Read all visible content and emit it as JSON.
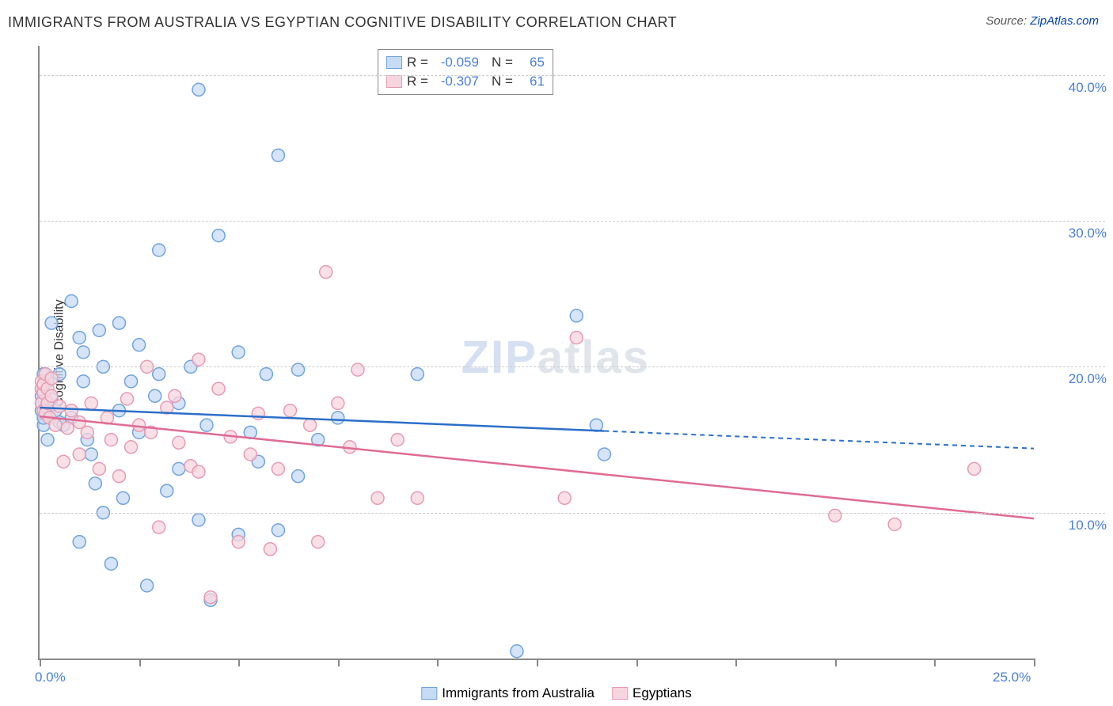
{
  "title": "IMMIGRANTS FROM AUSTRALIA VS EGYPTIAN COGNITIVE DISABILITY CORRELATION CHART",
  "source_prefix": "Source: ",
  "source_link": "ZipAtlas.com",
  "ylabel": "Cognitive Disability",
  "watermark": {
    "part1": "ZIP",
    "part2": "atlas"
  },
  "chart": {
    "type": "scatter",
    "background_color": "#ffffff",
    "grid_color": "#cccccc",
    "axis_color": "#888888",
    "tick_label_color": "#4a7fd6",
    "tick_label_fontsize": 17,
    "xlim": [
      0,
      25
    ],
    "ylim": [
      0,
      42
    ],
    "y_ticks": [
      10,
      20,
      30,
      40
    ],
    "y_tick_labels": [
      "10.0%",
      "20.0%",
      "30.0%",
      "40.0%"
    ],
    "x_ticks": [
      0,
      2.5,
      5,
      7.5,
      10,
      12.5,
      15,
      17.5,
      20,
      22.5,
      25
    ],
    "x_tick_labels_shown": {
      "0": "0.0%",
      "25": "25.0%"
    },
    "marker_radius": 8,
    "marker_stroke_width": 1.5,
    "line_width": 2.5,
    "series": [
      {
        "name": "Immigrants from Australia",
        "fill": "#c7dbf5",
        "stroke": "#6fa3e0",
        "line_color": "#2b6fc9",
        "R": "-0.059",
        "N": "65",
        "regression": {
          "x1": 0,
          "y1": 17.2,
          "x2": 14.2,
          "y2": 15.6
        },
        "extrapolation": {
          "x1": 14.2,
          "y1": 15.6,
          "x2": 25,
          "y2": 14.4,
          "dash": "6,5"
        },
        "points": [
          [
            0.05,
            18.0
          ],
          [
            0.05,
            17.0
          ],
          [
            0.05,
            17.5
          ],
          [
            0.05,
            18.5
          ],
          [
            0.1,
            16.0
          ],
          [
            0.1,
            19.5
          ],
          [
            0.1,
            16.5
          ],
          [
            0.1,
            18.3
          ],
          [
            0.2,
            19.0
          ],
          [
            0.2,
            17.2
          ],
          [
            0.2,
            15.0
          ],
          [
            0.3,
            23.0
          ],
          [
            0.3,
            17.8
          ],
          [
            0.4,
            17.0
          ],
          [
            0.5,
            19.5
          ],
          [
            0.5,
            16.2
          ],
          [
            0.6,
            16.0
          ],
          [
            0.8,
            24.5
          ],
          [
            0.8,
            16.5
          ],
          [
            1.0,
            22.0
          ],
          [
            1.0,
            8.0
          ],
          [
            1.1,
            21.0
          ],
          [
            1.1,
            19.0
          ],
          [
            1.2,
            15.0
          ],
          [
            1.3,
            14.0
          ],
          [
            1.4,
            12.0
          ],
          [
            1.5,
            22.5
          ],
          [
            1.6,
            20.0
          ],
          [
            1.6,
            10.0
          ],
          [
            1.8,
            6.5
          ],
          [
            2.0,
            23.0
          ],
          [
            2.0,
            17.0
          ],
          [
            2.1,
            11.0
          ],
          [
            2.3,
            19.0
          ],
          [
            2.5,
            15.5
          ],
          [
            2.5,
            21.5
          ],
          [
            2.7,
            5.0
          ],
          [
            2.9,
            18.0
          ],
          [
            3.0,
            28.0
          ],
          [
            3.0,
            19.5
          ],
          [
            3.2,
            11.5
          ],
          [
            3.5,
            13.0
          ],
          [
            3.5,
            17.5
          ],
          [
            3.8,
            20.0
          ],
          [
            4.0,
            39.0
          ],
          [
            4.0,
            9.5
          ],
          [
            4.2,
            16.0
          ],
          [
            4.3,
            4.0
          ],
          [
            4.5,
            29.0
          ],
          [
            5.0,
            8.5
          ],
          [
            5.0,
            21.0
          ],
          [
            5.3,
            15.5
          ],
          [
            5.5,
            13.5
          ],
          [
            5.7,
            19.5
          ],
          [
            6.0,
            34.5
          ],
          [
            6.0,
            8.8
          ],
          [
            6.5,
            12.5
          ],
          [
            6.5,
            19.8
          ],
          [
            7.0,
            15.0
          ],
          [
            7.5,
            16.5
          ],
          [
            9.5,
            19.5
          ],
          [
            12.0,
            0.5
          ],
          [
            13.5,
            23.5
          ],
          [
            14.0,
            16.0
          ],
          [
            14.2,
            14.0
          ]
        ]
      },
      {
        "name": "Egyptians",
        "fill": "#f7d5de",
        "stroke": "#e89ab2",
        "line_color": "#e06a93",
        "R": "-0.307",
        "N": "61",
        "regression": {
          "x1": 0,
          "y1": 16.6,
          "x2": 25,
          "y2": 9.6
        },
        "points": [
          [
            0.05,
            18.5
          ],
          [
            0.05,
            19.0
          ],
          [
            0.05,
            17.5
          ],
          [
            0.1,
            18.2
          ],
          [
            0.1,
            17.0
          ],
          [
            0.1,
            18.8
          ],
          [
            0.15,
            16.8
          ],
          [
            0.15,
            19.5
          ],
          [
            0.2,
            17.5
          ],
          [
            0.2,
            18.5
          ],
          [
            0.25,
            16.5
          ],
          [
            0.3,
            18.0
          ],
          [
            0.3,
            19.2
          ],
          [
            0.4,
            16.0
          ],
          [
            0.5,
            17.3
          ],
          [
            0.6,
            13.5
          ],
          [
            0.7,
            15.8
          ],
          [
            0.8,
            17.0
          ],
          [
            1.0,
            16.2
          ],
          [
            1.0,
            14.0
          ],
          [
            1.2,
            15.5
          ],
          [
            1.3,
            17.5
          ],
          [
            1.5,
            13.0
          ],
          [
            1.7,
            16.5
          ],
          [
            1.8,
            15.0
          ],
          [
            2.0,
            12.5
          ],
          [
            2.2,
            17.8
          ],
          [
            2.3,
            14.5
          ],
          [
            2.5,
            16.0
          ],
          [
            2.7,
            20.0
          ],
          [
            2.8,
            15.5
          ],
          [
            3.0,
            9.0
          ],
          [
            3.2,
            17.2
          ],
          [
            3.4,
            18.0
          ],
          [
            3.5,
            14.8
          ],
          [
            3.8,
            13.2
          ],
          [
            4.0,
            20.5
          ],
          [
            4.0,
            12.8
          ],
          [
            4.3,
            4.2
          ],
          [
            4.5,
            18.5
          ],
          [
            4.8,
            15.2
          ],
          [
            5.0,
            8.0
          ],
          [
            5.3,
            14.0
          ],
          [
            5.5,
            16.8
          ],
          [
            5.8,
            7.5
          ],
          [
            6.0,
            13.0
          ],
          [
            6.3,
            17.0
          ],
          [
            6.8,
            16.0
          ],
          [
            7.0,
            8.0
          ],
          [
            7.2,
            26.5
          ],
          [
            7.5,
            17.5
          ],
          [
            7.8,
            14.5
          ],
          [
            8.0,
            19.8
          ],
          [
            8.5,
            11.0
          ],
          [
            9.0,
            15.0
          ],
          [
            9.5,
            11.0
          ],
          [
            13.2,
            11.0
          ],
          [
            13.5,
            22.0
          ],
          [
            20.0,
            9.8
          ],
          [
            21.5,
            9.2
          ],
          [
            23.5,
            13.0
          ]
        ]
      }
    ]
  },
  "legend_top": {
    "R_label": "R =",
    "N_label": "N ="
  },
  "legend_bottom": [
    {
      "swatch_fill": "#c7dbf5",
      "swatch_stroke": "#6fa3e0",
      "label": "Immigrants from Australia"
    },
    {
      "swatch_fill": "#f7d5de",
      "swatch_stroke": "#e89ab2",
      "label": "Egyptians"
    }
  ]
}
